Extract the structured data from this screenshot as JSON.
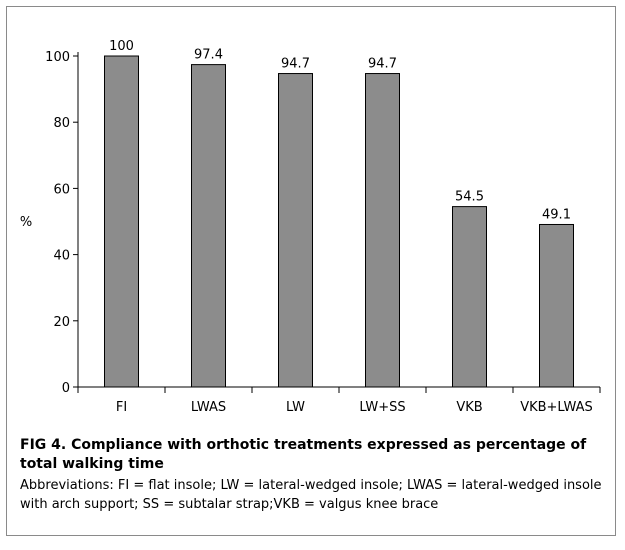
{
  "chart_data": {
    "type": "bar",
    "categories": [
      "FI",
      "LWAS",
      "LW",
      "LW+SS",
      "VKB",
      "VKB+LWAS"
    ],
    "values": [
      100,
      97.4,
      94.7,
      94.7,
      54.5,
      49.1
    ],
    "value_labels": [
      "100",
      "97.4",
      "94.7",
      "94.7",
      "54.5",
      "49.1"
    ],
    "ylabel": "%",
    "xlabel": "",
    "ylim": [
      0,
      100
    ],
    "yticks": [
      "0",
      "20",
      "40",
      "60",
      "80",
      "100"
    ],
    "bar_color": "#8c8c8c",
    "grid": false
  },
  "caption": {
    "title": "FIG 4.  Compliance with orthotic treatments expressed as percentage of total walking time",
    "note": "Abbreviations: FI = flat insole; LW = lateral-wedged insole; LWAS = lateral-wedged insole with arch support; SS = subtalar strap;VKB = valgus knee brace"
  }
}
